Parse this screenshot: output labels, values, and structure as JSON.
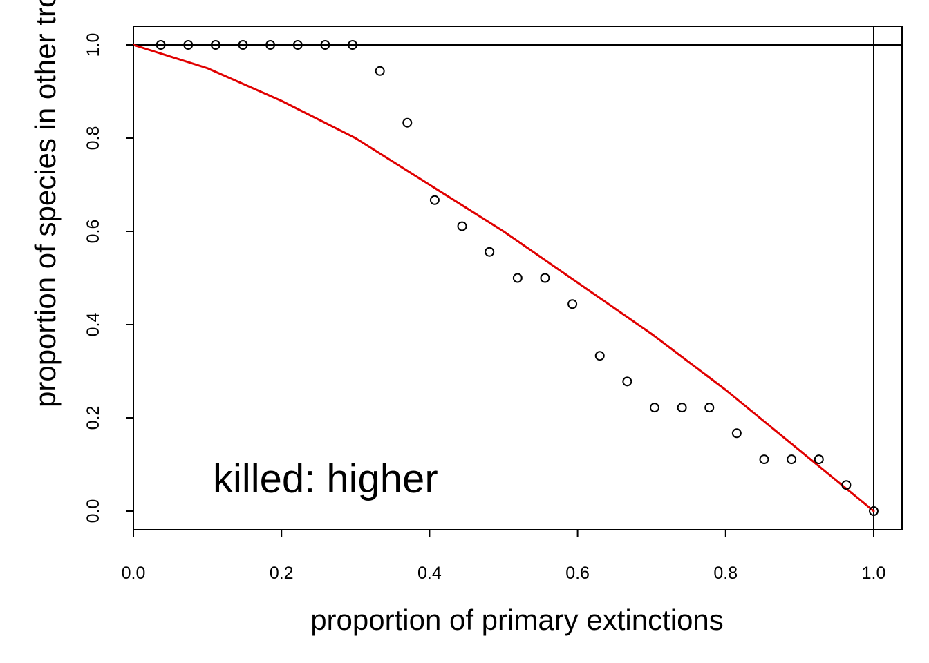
{
  "chart_data": {
    "type": "scatter",
    "title": "",
    "xlabel": "proportion of primary extinctions",
    "ylabel": "proportion of species in other trophic level still present",
    "xlim": [
      0.0,
      1.0
    ],
    "ylim": [
      0.0,
      1.0
    ],
    "xticks": [
      "0.0",
      "0.2",
      "0.4",
      "0.6",
      "0.8",
      "1.0"
    ],
    "yticks": [
      "0.0",
      "0.2",
      "0.4",
      "0.6",
      "0.8",
      "1.0"
    ],
    "grid": false,
    "annotation": "killed:  higher",
    "colors": {
      "points": "#000000",
      "fit_line": "#e00000",
      "axes": "#000000"
    },
    "reference_lines": {
      "horizontal_y": 1.0,
      "vertical_x": 1.0
    },
    "series": [
      {
        "type": "scatter",
        "x": [
          0.037,
          0.074,
          0.111,
          0.148,
          0.185,
          0.222,
          0.259,
          0.296,
          0.333,
          0.37,
          0.407,
          0.444,
          0.481,
          0.519,
          0.556,
          0.593,
          0.63,
          0.667,
          0.704,
          0.741,
          0.778,
          0.815,
          0.852,
          0.889,
          0.926,
          0.963,
          1.0
        ],
        "y": [
          1.0,
          1.0,
          1.0,
          1.0,
          1.0,
          1.0,
          1.0,
          1.0,
          0.944,
          0.833,
          0.667,
          0.611,
          0.556,
          0.5,
          0.5,
          0.444,
          0.333,
          0.278,
          0.222,
          0.222,
          0.222,
          0.167,
          0.111,
          0.111,
          0.111,
          0.056,
          0.0
        ]
      },
      {
        "type": "line",
        "x": [
          0.0,
          0.1,
          0.2,
          0.3,
          0.4,
          0.5,
          0.6,
          0.7,
          0.8,
          0.9,
          1.0
        ],
        "y": [
          1.0,
          0.95,
          0.88,
          0.8,
          0.7,
          0.6,
          0.49,
          0.38,
          0.26,
          0.13,
          0.0
        ]
      }
    ]
  }
}
